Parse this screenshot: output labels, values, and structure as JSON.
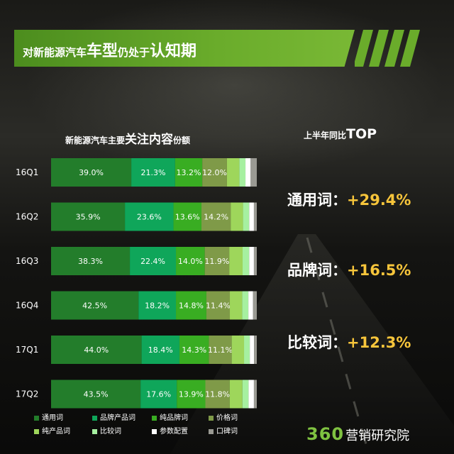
{
  "header": {
    "title_part1": "对新能源汽车",
    "title_part2": "车型",
    "title_part3": "仍处于",
    "title_part4": "认知期"
  },
  "chart_heading": {
    "part1": "新能源汽车主要",
    "part2": "关注内容",
    "part3": "份额"
  },
  "top_heading": {
    "part1": "上半年同比",
    "part2": "TOP"
  },
  "stats": [
    {
      "label": "通用词：",
      "value": "+29.4%"
    },
    {
      "label": "品牌词：",
      "value": "+16.5%"
    },
    {
      "label": "比较词：",
      "value": "+12.3%"
    }
  ],
  "logo": {
    "num": "360",
    "text": "营销研究院"
  },
  "colors": {
    "通用词": "#237d2b",
    "品牌产品词": "#0fa65a",
    "纯品牌词": "#39ad22",
    "价格词": "#7f9a48",
    "纯产品词": "#9ed65b",
    "比较词": "#a6f0a0",
    "参数配置": "#ffffff",
    "口碑词": "#9a9a93",
    "accent": "#f7c53b",
    "banner": "#5f9f27"
  },
  "chart_data": {
    "type": "bar",
    "orientation": "horizontal",
    "stacked": true,
    "normalized": true,
    "categories": [
      "16Q1",
      "16Q2",
      "16Q3",
      "16Q4",
      "17Q1",
      "17Q2"
    ],
    "series": [
      {
        "name": "通用词",
        "values": [
          39.0,
          35.9,
          38.3,
          42.5,
          44.0,
          43.5
        ],
        "labels": [
          "39.0%",
          "35.9%",
          "38.3%",
          "42.5%",
          "44.0%",
          "43.5%"
        ]
      },
      {
        "name": "品牌产品词",
        "values": [
          21.3,
          23.6,
          22.4,
          18.2,
          18.4,
          17.6
        ],
        "labels": [
          "21.3%",
          "23.6%",
          "22.4%",
          "18.2%",
          "18.4%",
          "17.6%"
        ]
      },
      {
        "name": "纯品牌词",
        "values": [
          13.2,
          13.6,
          14.0,
          14.8,
          14.3,
          13.9
        ],
        "labels": [
          "13.2%",
          "13.6%",
          "14.0%",
          "14.8%",
          "14.3%",
          "13.9%"
        ]
      },
      {
        "name": "价格词",
        "values": [
          12.0,
          14.2,
          11.9,
          11.4,
          11.1,
          11.8
        ],
        "labels": [
          "12.0%",
          "14.2%",
          "11.9%",
          "11.4%",
          "11.1%",
          "11.8%"
        ]
      },
      {
        "name": "纯产品词",
        "values": [
          6.0,
          6.0,
          6.5,
          6.0,
          6.0,
          6.2
        ],
        "labels": [
          "",
          "",
          "",
          "",
          "",
          ""
        ]
      },
      {
        "name": "比较词",
        "values": [
          3.0,
          3.0,
          3.2,
          3.0,
          2.8,
          3.0
        ],
        "labels": [
          "",
          "",
          "",
          "",
          "",
          ""
        ]
      },
      {
        "name": "参数配置",
        "values": [
          2.5,
          2.3,
          2.3,
          2.3,
          2.1,
          2.6
        ],
        "labels": [
          "",
          "",
          "",
          "",
          "",
          ""
        ]
      },
      {
        "name": "口碑词",
        "values": [
          3.0,
          1.4,
          1.4,
          1.8,
          1.3,
          1.4
        ],
        "labels": [
          "",
          "",
          "",
          "",
          "",
          ""
        ]
      }
    ],
    "legend_position": "bottom",
    "grid": false,
    "xlim": [
      0,
      100
    ]
  }
}
